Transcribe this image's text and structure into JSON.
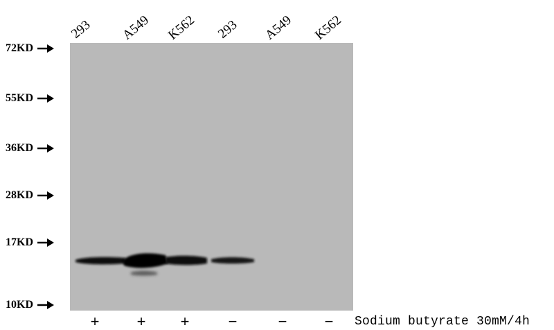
{
  "lanes": [
    {
      "label": "293",
      "treatment": "+"
    },
    {
      "label": "A549",
      "treatment": "+"
    },
    {
      "label": "K562",
      "treatment": "+"
    },
    {
      "label": "293",
      "treatment": "−"
    },
    {
      "label": "A549",
      "treatment": "−"
    },
    {
      "label": "K562",
      "treatment": "−"
    }
  ],
  "markers": [
    {
      "label": "72KD"
    },
    {
      "label": "55KD"
    },
    {
      "label": "36KD"
    },
    {
      "label": "28KD"
    },
    {
      "label": "17KD"
    },
    {
      "label": "10KD"
    }
  ],
  "treatment_label": "Sodium butyrate 30mM/4h",
  "colors": {
    "membrane": "#b9b9b9",
    "band": "#0a0a0a"
  }
}
